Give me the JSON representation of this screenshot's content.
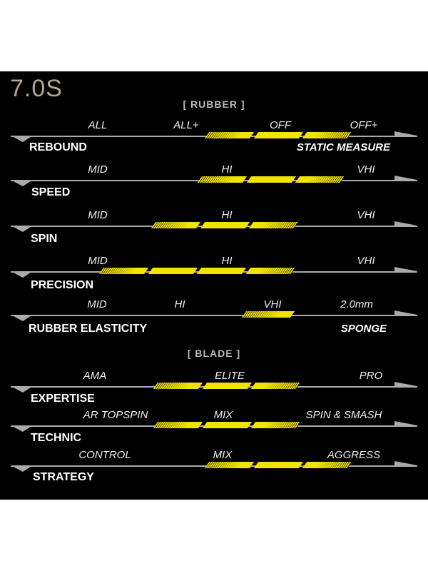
{
  "title": "7.0S",
  "sections": {
    "rubber": "[ RUBBER ]",
    "blade": "[ BLADE ]"
  },
  "colors": {
    "background": "#000000",
    "highlight": "#f2e300",
    "axis": "#aaaaaa",
    "title": "#b3a78e"
  },
  "rows": [
    {
      "name": "REBOUND",
      "right_label": "STATIC MEASURE",
      "scale": [
        "ALL",
        "ALL+",
        "OFF",
        "OFF+"
      ],
      "rating_segments": 3
    },
    {
      "name": "SPEED",
      "right_label": "",
      "scale": [
        "MID",
        "HI",
        "VHI"
      ],
      "rating_segments": 3
    },
    {
      "name": "SPIN",
      "right_label": "",
      "scale": [
        "MID",
        "HI",
        "VHI"
      ],
      "rating_segments": 3
    },
    {
      "name": "PRECISION",
      "right_label": "",
      "scale": [
        "MID",
        "HI",
        "VHI"
      ],
      "rating_segments": 4
    },
    {
      "name": "RUBBER ELASTICITY",
      "right_label": "SPONGE",
      "scale": [
        "MID",
        "HI",
        "VHI",
        "2.0mm"
      ],
      "rating_segments": 1
    },
    {
      "name": "EXPERTISE",
      "right_label": "",
      "scale": [
        "AMA",
        "ELITE",
        "PRO"
      ],
      "rating_segments": 3
    },
    {
      "name": "TECHNIC",
      "right_label": "",
      "scale": [
        "AR TOPSPIN",
        "MIX",
        "SPIN & SMASH"
      ],
      "rating_segments": 3
    },
    {
      "name": "STRATEGY",
      "right_label": "",
      "scale": [
        "CONTROL",
        "MIX",
        "AGGRESS"
      ],
      "rating_segments": 3
    }
  ]
}
